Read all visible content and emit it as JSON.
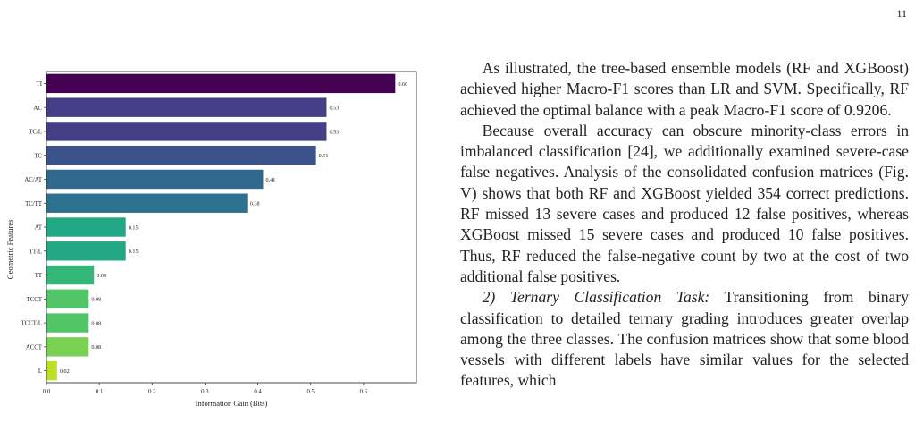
{
  "page_number": "11",
  "chart_data": {
    "type": "bar",
    "orientation": "horizontal",
    "categories": [
      "TI",
      "AC",
      "TC/L",
      "TC",
      "AC/AT",
      "TC/TT",
      "AT",
      "TT/L",
      "TT",
      "TCCT",
      "TCCT/L",
      "ACCT",
      "L"
    ],
    "values": [
      0.66,
      0.53,
      0.53,
      0.51,
      0.41,
      0.38,
      0.15,
      0.15,
      0.09,
      0.08,
      0.08,
      0.08,
      0.02
    ],
    "value_labels": [
      "0.66",
      "0.53",
      "0.53",
      "0.51",
      "0.41",
      "0.38",
      "0.15",
      "0.15",
      "0.09",
      "0.08",
      "0.08",
      "0.08",
      "0.02"
    ],
    "colors": [
      "#440154",
      "#433e85",
      "#433e85",
      "#3b528b",
      "#31688e",
      "#2c728e",
      "#22a884",
      "#22a884",
      "#35b779",
      "#52c569",
      "#52c569",
      "#7ad151",
      "#bddf26"
    ],
    "xticks": [
      "0.0",
      "0.1",
      "0.2",
      "0.3",
      "0.4",
      "0.5",
      "0.6"
    ],
    "xlim": [
      0,
      0.7
    ],
    "xlabel": "Information Gain (Bits)",
    "ylabel": "Geometric Features",
    "grid": false
  },
  "text": {
    "para1": "As illustrated, the tree-based ensemble models (RF and XGBoost) achieved higher Macro-F1 scores than LR and SVM. Specifically, RF achieved the optimal balance with a peak Macro-F1 score of 0.9206.",
    "para2": "Because overall accuracy can obscure minority-class errors in imbalanced classification [24], we additionally examined severe-case false negatives. Analysis of the consolidated confusion matrices (Fig. V) shows that both RF and XGBoost yielded 354 correct predictions. RF missed 13 severe cases and produced 12 false positives, whereas XGBoost missed 15 severe cases and produced 10 false positives. Thus, RF reduced the false-negative count by two at the cost of two additional false positives.",
    "para3_heading": "2) Ternary Classification Task:",
    "para3_body": " Transitioning from binary classification to detailed ternary grading introduces greater overlap among the three classes. The confusion matrices show that some blood vessels with different labels have similar values for the selected features, which"
  }
}
